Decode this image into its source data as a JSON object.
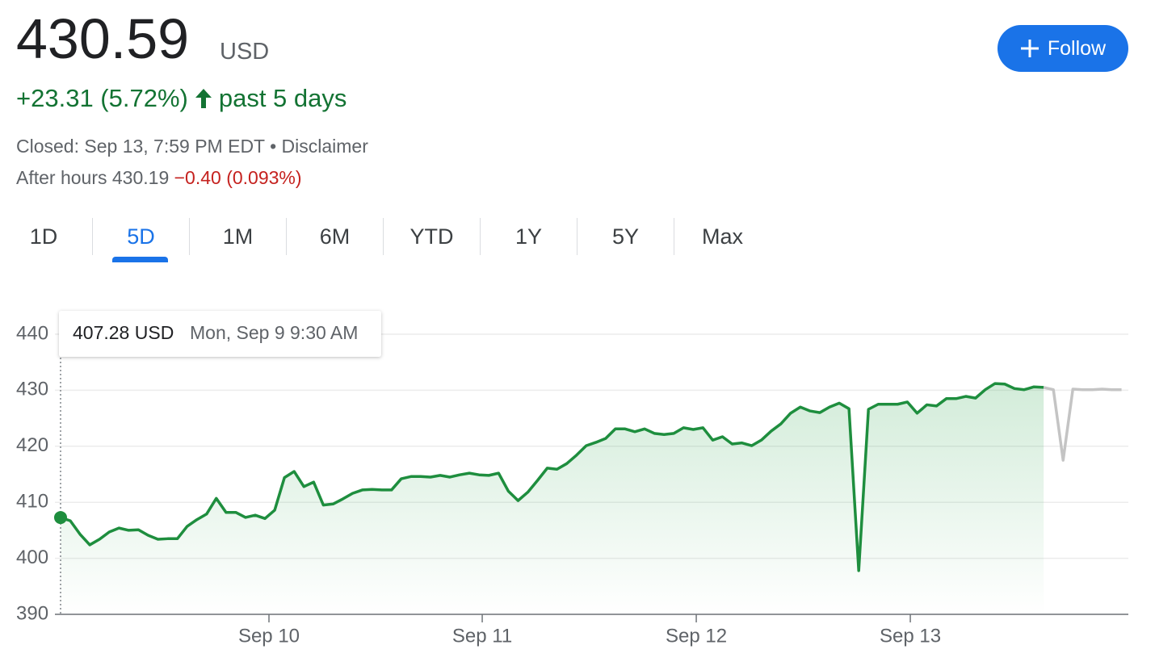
{
  "quote": {
    "price": "430.59",
    "currency": "USD",
    "change": "+23.31 (5.72%)",
    "period": "past 5 days",
    "status": "Closed: Sep 13, 7:59 PM EDT •",
    "disclaimer": "Disclaimer",
    "after_hours": "After hours 430.19",
    "after_hours_change": "−0.40 (0.093%)"
  },
  "follow": "Follow",
  "tabs": [
    "1D",
    "5D",
    "1M",
    "6M",
    "YTD",
    "1Y",
    "5Y",
    "Max"
  ],
  "selected_tab": 1,
  "tooltip": {
    "price": "407.28 USD",
    "time": "Mon, Sep 9 9:30 AM"
  },
  "chart_data": {
    "type": "line",
    "x": [
      0,
      1,
      2,
      3,
      4,
      5,
      6,
      7,
      8,
      9,
      10,
      11,
      12,
      13,
      14,
      15,
      16,
      17,
      18,
      19,
      20,
      21,
      22,
      23,
      24,
      25,
      26,
      27,
      28,
      29,
      30,
      31,
      32,
      33,
      34,
      35,
      36,
      37,
      38,
      39,
      40,
      41,
      42,
      43,
      44,
      45,
      46,
      47,
      48,
      49,
      50,
      51,
      52,
      53,
      54,
      55,
      56,
      57,
      58,
      59,
      60,
      61,
      62,
      63,
      64,
      65,
      66,
      67,
      68,
      69,
      70,
      71,
      72,
      73,
      74,
      75,
      76,
      77,
      78,
      79,
      80,
      81,
      82,
      83,
      84,
      85,
      86,
      87,
      88,
      89,
      90,
      91,
      92,
      93,
      94,
      95,
      96,
      97,
      98,
      99,
      100,
      101,
      102,
      103,
      104,
      105,
      106,
      107,
      108,
      109
    ],
    "series": [
      {
        "color": "#1e8e3e",
        "values": [
          407.28,
          406.7,
          404.3,
          402.4,
          403.4,
          404.7,
          405.4,
          405.0,
          405.1,
          404.1,
          403.4,
          403.5,
          403.5,
          405.7,
          406.9,
          407.9,
          410.7,
          408.2,
          408.2,
          407.3,
          407.7,
          407.1,
          408.6,
          414.4,
          415.5,
          412.8,
          413.6,
          409.5,
          409.7,
          410.6,
          411.6,
          412.2,
          412.3,
          412.2,
          412.2,
          414.2,
          414.6,
          414.6,
          414.5,
          414.8,
          414.5,
          414.9,
          415.2,
          414.9,
          414.8,
          415.2,
          412.0,
          410.3,
          411.8,
          413.9,
          416.1,
          415.9,
          416.9,
          418.4,
          420.1,
          420.7,
          421.4,
          423.1,
          423.1,
          422.6,
          423.1,
          422.3,
          422.1,
          422.3,
          423.3,
          423.0,
          423.3,
          421.1,
          421.7,
          420.4,
          420.6,
          420.1,
          421.1,
          422.7,
          424.0,
          425.9,
          427.0,
          426.3,
          426.0,
          427.0,
          427.7,
          426.7,
          397.8,
          426.6,
          427.5,
          427.5,
          427.5,
          427.9,
          425.9,
          427.4,
          427.2,
          428.5,
          428.5,
          428.9,
          428.6,
          430.1,
          431.2,
          431.1,
          430.3,
          430.1,
          430.6,
          430.5,
          null,
          null,
          null,
          null,
          null,
          null,
          null,
          null
        ]
      },
      {
        "color": "#c4c4c4",
        "values": [
          null,
          null,
          null,
          null,
          null,
          null,
          null,
          null,
          null,
          null,
          null,
          null,
          null,
          null,
          null,
          null,
          null,
          null,
          null,
          null,
          null,
          null,
          null,
          null,
          null,
          null,
          null,
          null,
          null,
          null,
          null,
          null,
          null,
          null,
          null,
          null,
          null,
          null,
          null,
          null,
          null,
          null,
          null,
          null,
          null,
          null,
          null,
          null,
          null,
          null,
          null,
          null,
          null,
          null,
          null,
          null,
          null,
          null,
          null,
          null,
          null,
          null,
          null,
          null,
          null,
          null,
          null,
          null,
          null,
          null,
          null,
          null,
          null,
          null,
          null,
          null,
          null,
          null,
          null,
          null,
          null,
          null,
          null,
          null,
          null,
          null,
          null,
          null,
          null,
          null,
          null,
          null,
          null,
          null,
          null,
          null,
          null,
          null,
          null,
          null,
          null,
          430.5,
          430.1,
          417.5,
          430.2,
          430.1,
          430.1,
          430.2,
          430.1,
          430.1
        ]
      }
    ],
    "xlim": [
      -0.58,
      109.7
    ],
    "xticks": [
      {
        "value": 21.41,
        "label": "Sep 10"
      },
      {
        "value": 43.32,
        "label": "Sep 11"
      },
      {
        "value": 65.31,
        "label": "Sep 12"
      },
      {
        "value": 87.3,
        "label": "Sep 13"
      }
    ],
    "ylim": [
      390,
      440
    ],
    "yticks": [
      390,
      400,
      410,
      420,
      430,
      440
    ],
    "grid": true
  }
}
